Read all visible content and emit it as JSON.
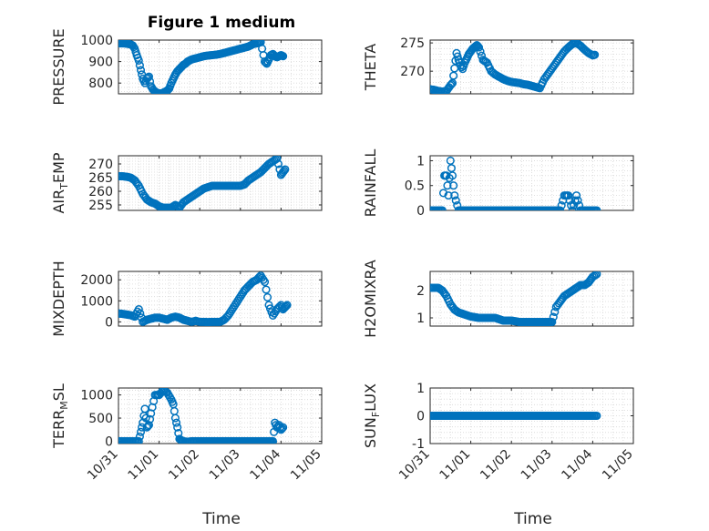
{
  "figure": {
    "title": "Figure 1 medium"
  },
  "x_axis": {
    "label": "Time",
    "ticks": [
      "10/31",
      "11/01",
      "11/02",
      "11/03",
      "11/04",
      "11/05"
    ],
    "range": [
      0,
      5
    ]
  },
  "colors": {
    "marker": "#0072BD",
    "axis": "#262626",
    "grid": "#d7d7d7"
  },
  "chart_data": [
    {
      "type": "scatter",
      "ylabel": "PRESSURE",
      "ylim": [
        750,
        1000
      ],
      "yticks": [
        800,
        900,
        1000
      ],
      "grid": true,
      "x": [
        0,
        0.1,
        0.15,
        0.2,
        0.3,
        0.35,
        0.4,
        0.45,
        0.5,
        0.55,
        0.6,
        0.65,
        0.7,
        0.75,
        0.8,
        0.85,
        0.9,
        0.95,
        1.0,
        1.05,
        1.1,
        1.15,
        1.2,
        1.25,
        1.3,
        1.35,
        1.4,
        1.45,
        1.5,
        1.55,
        1.6,
        1.65,
        1.7,
        1.75,
        1.8,
        1.9,
        2.0,
        2.1,
        2.2,
        2.3,
        2.4,
        2.5,
        2.6,
        2.7,
        2.8,
        2.9,
        3.0,
        3.1,
        3.2,
        3.3,
        3.4,
        3.5,
        3.6,
        3.65,
        3.7,
        3.75,
        3.8,
        3.85,
        3.9,
        3.95,
        4.0,
        4.05
      ],
      "y": [
        985,
        985,
        985,
        983,
        980,
        975,
        960,
        930,
        905,
        860,
        820,
        800,
        820,
        830,
        785,
        770,
        760,
        755,
        752,
        752,
        755,
        760,
        765,
        775,
        800,
        820,
        840,
        855,
        865,
        875,
        885,
        890,
        900,
        905,
        910,
        915,
        920,
        925,
        928,
        930,
        932,
        935,
        940,
        945,
        950,
        955,
        960,
        965,
        970,
        980,
        985,
        990,
        900,
        890,
        910,
        930,
        935,
        925,
        920,
        925,
        930,
        925
      ]
    },
    {
      "type": "scatter",
      "ylabel": "THETA",
      "ylim": [
        266,
        275.5
      ],
      "yticks": [
        270,
        275
      ],
      "grid": true,
      "x": [
        0,
        0.1,
        0.2,
        0.3,
        0.4,
        0.5,
        0.55,
        0.6,
        0.65,
        0.7,
        0.75,
        0.8,
        0.85,
        0.9,
        0.95,
        1.0,
        1.05,
        1.1,
        1.15,
        1.2,
        1.3,
        1.4,
        1.5,
        1.6,
        1.7,
        1.8,
        1.9,
        2.0,
        2.1,
        2.2,
        2.3,
        2.4,
        2.5,
        2.6,
        2.7,
        2.8,
        2.9,
        3.0,
        3.1,
        3.2,
        3.3,
        3.4,
        3.5,
        3.6,
        3.7,
        3.8,
        3.9,
        4.0,
        4.05
      ],
      "y": [
        266.8,
        266.7,
        266.5,
        266.4,
        266.5,
        267.5,
        267.9,
        270.5,
        273.2,
        272,
        271,
        270.4,
        271.5,
        272.2,
        273,
        273.5,
        274,
        274.3,
        274.6,
        274.2,
        272,
        271.5,
        270,
        269.4,
        269,
        268.6,
        268.3,
        268.1,
        268,
        267.9,
        267.7,
        267.6,
        267.4,
        267.2,
        267,
        268.5,
        269.5,
        270.5,
        271.5,
        272.5,
        273.5,
        274.2,
        274.8,
        275,
        274.5,
        273.8,
        273.2,
        272.8,
        272.9
      ]
    },
    {
      "type": "scatter",
      "ylabel": "AIR_TEMP",
      "ylim": [
        253,
        273
      ],
      "yticks": [
        255,
        260,
        265,
        270
      ],
      "grid": true,
      "x": [
        0,
        0.1,
        0.2,
        0.3,
        0.4,
        0.5,
        0.6,
        0.7,
        0.8,
        0.9,
        1.0,
        1.1,
        1.2,
        1.3,
        1.4,
        1.5,
        1.6,
        1.7,
        1.8,
        1.9,
        2.0,
        2.1,
        2.2,
        2.3,
        2.4,
        2.5,
        2.6,
        2.7,
        2.8,
        2.9,
        3.0,
        3.1,
        3.2,
        3.3,
        3.4,
        3.5,
        3.6,
        3.7,
        3.8,
        3.9,
        4.0,
        4.05,
        4.1
      ],
      "y": [
        265.5,
        265.5,
        265.3,
        265,
        264,
        262,
        259,
        257,
        256,
        255.5,
        254.5,
        254,
        254,
        254,
        255,
        254,
        256,
        257,
        258,
        259,
        260,
        261,
        261.5,
        262,
        262,
        262,
        262,
        262,
        262,
        262,
        262,
        262.5,
        264,
        265,
        266,
        267,
        268.5,
        270,
        271,
        272,
        266,
        267,
        268
      ]
    },
    {
      "type": "scatter",
      "ylabel": "RAINFALL",
      "ylim": [
        0,
        1.1
      ],
      "yticks": [
        0,
        0.5,
        1
      ],
      "grid": true,
      "x": [
        0,
        0.1,
        0.2,
        0.3,
        0.35,
        0.4,
        0.45,
        0.5,
        0.55,
        0.6,
        0.7,
        0.8,
        0.9,
        1.0,
        1.2,
        1.4,
        1.6,
        1.8,
        2.0,
        2.2,
        2.4,
        2.6,
        2.8,
        3.0,
        3.2,
        3.3,
        3.4,
        3.5,
        3.6,
        3.7,
        3.8,
        3.9,
        4.0,
        4.1
      ],
      "y": [
        0,
        0,
        0,
        0,
        0.7,
        0.7,
        0.3,
        1,
        0.7,
        0.3,
        0,
        0,
        0,
        0,
        0,
        0,
        0,
        0,
        0,
        0,
        0,
        0,
        0,
        0,
        0,
        0.3,
        0.3,
        0,
        0.3,
        0,
        0,
        0,
        0,
        0
      ]
    },
    {
      "type": "scatter",
      "ylabel": "MIXDEPTH",
      "ylim": [
        -200,
        2400
      ],
      "yticks": [
        0,
        1000,
        2000
      ],
      "grid": true,
      "x": [
        0,
        0.1,
        0.2,
        0.3,
        0.4,
        0.5,
        0.6,
        0.7,
        0.8,
        0.9,
        1.0,
        1.1,
        1.2,
        1.3,
        1.4,
        1.5,
        1.6,
        1.7,
        1.8,
        1.9,
        2.0,
        2.1,
        2.2,
        2.3,
        2.4,
        2.5,
        2.6,
        2.7,
        2.8,
        2.9,
        3.0,
        3.1,
        3.2,
        3.3,
        3.4,
        3.5,
        3.6,
        3.7,
        3.8,
        3.9,
        4.0,
        4.05,
        4.1,
        4.15
      ],
      "y": [
        400,
        380,
        350,
        320,
        250,
        600,
        0,
        100,
        150,
        200,
        200,
        150,
        100,
        200,
        250,
        200,
        100,
        50,
        0,
        50,
        0,
        0,
        -10,
        0,
        0,
        0,
        100,
        300,
        600,
        900,
        1200,
        1500,
        1700,
        1900,
        2000,
        2200,
        1900,
        800,
        300,
        600,
        800,
        600,
        700,
        800
      ]
    },
    {
      "type": "scatter",
      "ylabel": "H2OMIXRA",
      "ylim": [
        0.7,
        2.7
      ],
      "yticks": [
        1,
        2
      ],
      "grid": true,
      "x": [
        0,
        0.1,
        0.2,
        0.3,
        0.4,
        0.5,
        0.6,
        0.7,
        0.8,
        0.9,
        1.0,
        1.2,
        1.4,
        1.6,
        1.8,
        2.0,
        2.2,
        2.4,
        2.6,
        2.8,
        3.0,
        3.1,
        3.2,
        3.3,
        3.4,
        3.5,
        3.6,
        3.7,
        3.8,
        3.9,
        4.0,
        4.1
      ],
      "y": [
        2.1,
        2.1,
        2.1,
        2.0,
        1.8,
        1.5,
        1.3,
        1.2,
        1.15,
        1.1,
        1.05,
        1.0,
        1.0,
        1.0,
        0.9,
        0.9,
        0.85,
        0.85,
        0.85,
        0.85,
        0.85,
        1.4,
        1.6,
        1.8,
        1.9,
        2.0,
        2.1,
        2.2,
        2.2,
        2.3,
        2.5,
        2.6
      ]
    },
    {
      "type": "scatter",
      "ylabel": "TERR_MSL",
      "ylim": [
        -50,
        1150
      ],
      "yticks": [
        0,
        500,
        1000
      ],
      "grid": true,
      "x": [
        0,
        0.1,
        0.2,
        0.3,
        0.4,
        0.5,
        0.55,
        0.6,
        0.65,
        0.7,
        0.75,
        0.8,
        0.9,
        1.0,
        1.1,
        1.2,
        1.3,
        1.35,
        1.4,
        1.45,
        1.5,
        1.55,
        1.6,
        1.7,
        1.8,
        1.9,
        2.0,
        2.2,
        2.4,
        2.6,
        2.8,
        3.0,
        3.2,
        3.4,
        3.6,
        3.8,
        3.85,
        3.9,
        3.95,
        4.0,
        4.05
      ],
      "y": [
        0,
        0,
        0,
        0,
        0,
        0,
        200,
        400,
        700,
        300,
        350,
        600,
        1000,
        1000,
        1100,
        1050,
        900,
        800,
        500,
        300,
        50,
        20,
        0,
        -10,
        0,
        0,
        0,
        0,
        0,
        0,
        0,
        0,
        0,
        0,
        0,
        0,
        400,
        300,
        350,
        250,
        300
      ]
    },
    {
      "type": "scatter",
      "ylabel": "SUN_FLUX",
      "ylim": [
        -1,
        1
      ],
      "yticks": [
        -1,
        0,
        1
      ],
      "grid": true,
      "x": [
        0,
        0.5,
        1.0,
        1.5,
        2.0,
        2.5,
        3.0,
        3.5,
        4.0,
        4.1
      ],
      "y": [
        0,
        0,
        0,
        0,
        0,
        0,
        0,
        0,
        0,
        0
      ]
    }
  ]
}
